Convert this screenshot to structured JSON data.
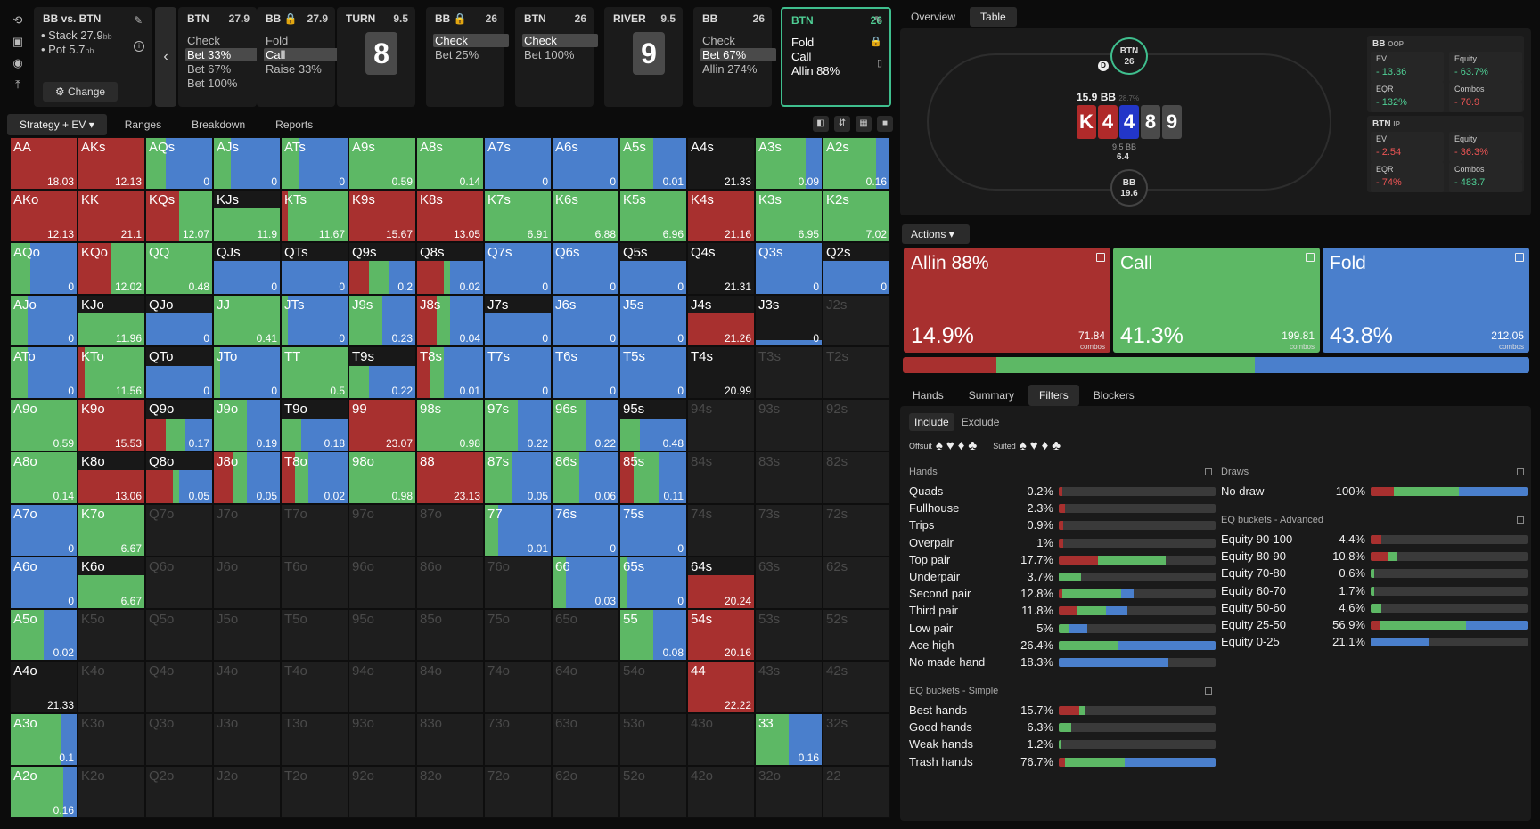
{
  "sidebar_icons": [
    "reset-icon",
    "save-icon",
    "gamepad-icon",
    "export-icon"
  ],
  "info": {
    "title": "BB vs. BTN",
    "stack_label": "Stack 27.9",
    "stack_unit": "bb",
    "pot_label": "Pot 5.7",
    "pot_unit": "bb",
    "change_label": "Change"
  },
  "nodes": [
    {
      "player": "BTN",
      "value": "27.9",
      "options": [
        "Check",
        "Bet 33%",
        "Bet 67%",
        "Bet 100%"
      ],
      "selected": 1
    },
    {
      "player": "BB",
      "value": "27.9",
      "lock": true,
      "options": [
        "Fold",
        "Call",
        "Raise 33%"
      ],
      "selected": 1
    },
    {
      "player": "TURN",
      "value": "9.5",
      "card": "8"
    },
    {
      "player": "BB",
      "value": "26",
      "lock": true,
      "options": [
        "Check",
        "Bet 25%"
      ],
      "selected": 0
    },
    {
      "player": "BTN",
      "value": "26",
      "options": [
        "Check",
        "Bet 100%"
      ],
      "selected": 0
    },
    {
      "player": "RIVER",
      "value": "9.5",
      "card": "9"
    },
    {
      "player": "BB",
      "value": "26",
      "options": [
        "Check",
        "Bet 67%",
        "Allin 274%"
      ],
      "selected": 1
    },
    {
      "player": "BTN",
      "value": "26",
      "options": [
        "Fold",
        "Call",
        "Allin 88%"
      ],
      "selected": -1,
      "active": true
    }
  ],
  "left_tabs": [
    "Strategy + EV",
    "Ranges",
    "Breakdown",
    "Reports"
  ],
  "right_tabs": [
    "Overview",
    "Table"
  ],
  "table": {
    "btn_seat": "BTN",
    "btn_stack": "26",
    "bb_seat": "BB",
    "bb_stack": "19.6",
    "dealer": "D",
    "pot": "15.9 BB",
    "pot_sub": "28.7%",
    "board": [
      {
        "r": "K",
        "c": "#b02a2a"
      },
      {
        "r": "4",
        "c": "#b02a2a"
      },
      {
        "r": "4",
        "c": "#2236c8"
      },
      {
        "r": "8",
        "c": "#4a4a4a"
      },
      {
        "r": "9",
        "c": "#4a4a4a"
      }
    ],
    "bet1": "9.5 BB",
    "bet2": "6.4"
  },
  "stats": {
    "bb": {
      "name": "BB",
      "pos": "OOP",
      "ev": "13.36",
      "equity": "63.7%",
      "eqr": "132%",
      "combos": "70.9"
    },
    "btn": {
      "name": "BTN",
      "pos": "IP",
      "ev": "2.54",
      "equity": "36.3%",
      "eqr": "74%",
      "combos": "483.7"
    },
    "labels": {
      "ev": "EV",
      "equity": "Equity",
      "eqr": "EQR",
      "combos": "Combos"
    }
  },
  "actions_label": "Actions",
  "actions": [
    {
      "name": "Allin 88%",
      "pct": "14.9%",
      "combos": "71.84",
      "color": "#a8302f",
      "frac": 0.149
    },
    {
      "name": "Call",
      "pct": "41.3%",
      "combos": "199.81",
      "color": "#5db865",
      "frac": 0.413
    },
    {
      "name": "Fold",
      "pct": "43.8%",
      "combos": "212.05",
      "color": "#4a7fcc",
      "frac": 0.438
    }
  ],
  "combos_word": "combos",
  "sub_tabs": [
    "Hands",
    "Summary",
    "Filters",
    "Blockers"
  ],
  "include_label": "Include",
  "exclude_label": "Exclude",
  "offsuit_label": "Offsuit",
  "suited_label": "Suited",
  "suits": [
    "♠",
    "♥",
    "♦",
    "♣"
  ],
  "hands_title": "Hands",
  "hands": [
    {
      "n": "Quads",
      "p": "0.2%",
      "b": [
        0.02,
        0,
        0
      ]
    },
    {
      "n": "Fullhouse",
      "p": "2.3%",
      "b": [
        0.04,
        0,
        0
      ]
    },
    {
      "n": "Trips",
      "p": "0.9%",
      "b": [
        0.03,
        0,
        0
      ]
    },
    {
      "n": "Overpair",
      "p": "1%",
      "b": [
        0.03,
        0,
        0
      ]
    },
    {
      "n": "Top pair",
      "p": "17.7%",
      "b": [
        0.25,
        0.43,
        0
      ]
    },
    {
      "n": "Underpair",
      "p": "3.7%",
      "b": [
        0,
        0.14,
        0
      ]
    },
    {
      "n": "Second pair",
      "p": "12.8%",
      "b": [
        0.02,
        0.38,
        0.08
      ]
    },
    {
      "n": "Third pair",
      "p": "11.8%",
      "b": [
        0.12,
        0.18,
        0.14
      ]
    },
    {
      "n": "Low pair",
      "p": "5%",
      "b": [
        0,
        0.06,
        0.12
      ]
    },
    {
      "n": "Ace high",
      "p": "26.4%",
      "b": [
        0,
        0.38,
        0.62
      ]
    },
    {
      "n": "No made hand",
      "p": "18.3%",
      "b": [
        0,
        0,
        0.7
      ]
    }
  ],
  "eqs_title": "EQ buckets - Simple",
  "eqs": [
    {
      "n": "Best hands",
      "p": "15.7%",
      "b": [
        0.13,
        0.04,
        0
      ]
    },
    {
      "n": "Good hands",
      "p": "6.3%",
      "b": [
        0,
        0.08,
        0
      ]
    },
    {
      "n": "Weak hands",
      "p": "1.2%",
      "b": [
        0,
        0.01,
        0
      ]
    },
    {
      "n": "Trash hands",
      "p": "76.7%",
      "b": [
        0.04,
        0.38,
        0.58
      ]
    }
  ],
  "draws_title": "Draws",
  "draws": [
    {
      "n": "No draw",
      "p": "100%",
      "b": [
        0.15,
        0.41,
        0.44
      ]
    }
  ],
  "eqa_title": "EQ buckets - Advanced",
  "eqa": [
    {
      "n": "Equity 90-100",
      "p": "4.4%",
      "b": [
        0.07,
        0,
        0
      ]
    },
    {
      "n": "Equity 80-90",
      "p": "10.8%",
      "b": [
        0.11,
        0.06,
        0
      ]
    },
    {
      "n": "Equity 70-80",
      "p": "0.6%",
      "b": [
        0,
        0.02,
        0
      ]
    },
    {
      "n": "Equity 60-70",
      "p": "1.7%",
      "b": [
        0,
        0.02,
        0
      ]
    },
    {
      "n": "Equity 50-60",
      "p": "4.6%",
      "b": [
        0,
        0.07,
        0
      ]
    },
    {
      "n": "Equity 25-50",
      "p": "56.9%",
      "b": [
        0.06,
        0.55,
        0.39
      ]
    },
    {
      "n": "Equity 0-25",
      "p": "21.1%",
      "b": [
        0,
        0,
        0.37
      ]
    }
  ],
  "colors": {
    "raise": "#a8302f",
    "call": "#5db865",
    "fold": "#4a7fcc",
    "check": "#181818"
  },
  "grid_ranks": [
    "A",
    "K",
    "Q",
    "J",
    "T",
    "9",
    "8",
    "7",
    "6",
    "5",
    "4",
    "3",
    "2"
  ],
  "grid": {
    "AA": [
      1,
      0,
      0,
      "18.03"
    ],
    "AKs": [
      1,
      0,
      0,
      "12.13"
    ],
    "AQs": [
      0,
      0.3,
      0.7,
      "0"
    ],
    "AJs": [
      0,
      0.25,
      0.75,
      "0"
    ],
    "ATs": [
      0,
      0.25,
      0.75,
      "0"
    ],
    "A9s": [
      0,
      1,
      0,
      "0.59"
    ],
    "A8s": [
      0,
      1,
      0,
      "0.14"
    ],
    "A7s": [
      0,
      0,
      1,
      "0"
    ],
    "A6s": [
      0,
      0,
      1,
      "0"
    ],
    "A5s": [
      0,
      0.5,
      0.5,
      "0.01"
    ],
    "A4s": [
      0,
      0,
      0,
      "21.33"
    ],
    "A3s": [
      0,
      0.75,
      0.25,
      "0.09"
    ],
    "A2s": [
      0,
      0.8,
      0.2,
      "0.16"
    ],
    "AKo": [
      1,
      0,
      0,
      "12.13"
    ],
    "KK": [
      1,
      0,
      0,
      "21.1"
    ],
    "KQs": [
      0.5,
      0.5,
      0,
      "12.07"
    ],
    "KJs": [
      0,
      1,
      0,
      "11.9",
      "cb"
    ],
    "KTs": [
      0.1,
      0.9,
      0,
      "11.67"
    ],
    "K9s": [
      1,
      0,
      0,
      "15.67"
    ],
    "K8s": [
      1,
      0,
      0,
      "13.05"
    ],
    "K7s": [
      0,
      1,
      0,
      "6.91"
    ],
    "K6s": [
      0,
      1,
      0,
      "6.88"
    ],
    "K5s": [
      0,
      1,
      0,
      "6.96"
    ],
    "K4s": [
      1,
      0,
      0,
      "21.16"
    ],
    "K3s": [
      0,
      1,
      0,
      "6.95"
    ],
    "K2s": [
      0,
      1,
      0,
      "7.02"
    ],
    "AQo": [
      0,
      0.3,
      0.7,
      "0"
    ],
    "KQo": [
      0.5,
      0.5,
      0,
      "12.02"
    ],
    "QQ": [
      0,
      1,
      0,
      "0.48"
    ],
    "QJs": [
      0,
      0,
      1,
      "0",
      "cb"
    ],
    "QTs": [
      0,
      0,
      1,
      "0",
      "cb"
    ],
    "Q9s": [
      0.3,
      0.3,
      0.4,
      "0.2",
      "cb"
    ],
    "Q8s": [
      0.4,
      0.1,
      0.5,
      "0.02",
      "cb"
    ],
    "Q7s": [
      0,
      0,
      1,
      "0"
    ],
    "Q6s": [
      0,
      0,
      1,
      "0"
    ],
    "Q5s": [
      0,
      0,
      1,
      "0",
      "cb"
    ],
    "Q4s": [
      0,
      0,
      0,
      "21.31"
    ],
    "Q3s": [
      0,
      0,
      1,
      "0"
    ],
    "Q2s": [
      0,
      0,
      1,
      "0",
      "cb"
    ],
    "AJo": [
      0,
      0.25,
      0.75,
      "0"
    ],
    "KJo": [
      0,
      1,
      0,
      "11.96",
      "cb"
    ],
    "QJo": [
      0,
      0,
      1,
      "0",
      "cb"
    ],
    "JJ": [
      0,
      1,
      0,
      "0.41"
    ],
    "JTs": [
      0,
      0.1,
      0.9,
      "0"
    ],
    "J9s": [
      0,
      0.5,
      0.5,
      "0.23"
    ],
    "J8s": [
      0.3,
      0.2,
      0.5,
      "0.04"
    ],
    "J7s": [
      0,
      0,
      1,
      "0",
      "cb"
    ],
    "J6s": [
      0,
      0,
      1,
      "0"
    ],
    "J5s": [
      0,
      0,
      1,
      "0"
    ],
    "J4s": [
      1,
      0,
      0,
      "21.26",
      "cb"
    ],
    "J3s": [
      0,
      0,
      1,
      "0",
      "cb2"
    ],
    "ATo": [
      0,
      0.25,
      0.75,
      "0"
    ],
    "KTo": [
      0.1,
      0.9,
      0,
      "11.56"
    ],
    "QTo": [
      0,
      0,
      1,
      "0",
      "cb"
    ],
    "JTo": [
      0,
      0.1,
      0.9,
      "0"
    ],
    "TT": [
      0,
      1,
      0,
      "0.5"
    ],
    "T9s": [
      0,
      0.3,
      0.7,
      "0.22",
      "cb"
    ],
    "T8s": [
      0.2,
      0.2,
      0.6,
      "0.01"
    ],
    "T7s": [
      0,
      0,
      1,
      "0"
    ],
    "T6s": [
      0,
      0,
      1,
      "0"
    ],
    "T5s": [
      0,
      0,
      1,
      "0"
    ],
    "T4s": [
      0,
      0,
      0,
      "20.99"
    ],
    "A9o": [
      0,
      1,
      0,
      "0.59"
    ],
    "K9o": [
      1,
      0,
      0,
      "15.53"
    ],
    "Q9o": [
      0.3,
      0.3,
      0.4,
      "0.17",
      "cb"
    ],
    "J9o": [
      0,
      0.5,
      0.5,
      "0.19"
    ],
    "T9o": [
      0,
      0.3,
      0.7,
      "0.18",
      "cb"
    ],
    "99": [
      1,
      0,
      0,
      "23.07"
    ],
    "98s": [
      0,
      1,
      0,
      "0.98"
    ],
    "97s": [
      0,
      0.5,
      0.5,
      "0.22"
    ],
    "96s": [
      0,
      0.5,
      0.5,
      "0.22"
    ],
    "95s": [
      0,
      0.3,
      0.7,
      "0.48",
      "cb"
    ],
    "A8o": [
      0,
      1,
      0,
      "0.14"
    ],
    "K8o": [
      1,
      0,
      0,
      "13.06",
      "cb"
    ],
    "Q8o": [
      0.4,
      0.1,
      0.5,
      "0.05",
      "cb"
    ],
    "J8o": [
      0.3,
      0.2,
      0.5,
      "0.05"
    ],
    "T8o": [
      0.2,
      0.2,
      0.6,
      "0.02"
    ],
    "98o": [
      0,
      1,
      0,
      "0.98"
    ],
    "88": [
      1,
      0,
      0,
      "23.13"
    ],
    "87s": [
      0,
      0.4,
      0.6,
      "0.05"
    ],
    "86s": [
      0,
      0.4,
      0.6,
      "0.06"
    ],
    "85s": [
      0.2,
      0.4,
      0.4,
      "0.11"
    ],
    "A7o": [
      0,
      0,
      1,
      "0"
    ],
    "K7o": [
      0,
      1,
      0,
      "6.67"
    ],
    "77": [
      0,
      0.2,
      0.8,
      "0.01"
    ],
    "76s": [
      0,
      0,
      1,
      "0"
    ],
    "75s": [
      0,
      0,
      1,
      "0"
    ],
    "A6o": [
      0,
      0,
      1,
      "0"
    ],
    "K6o": [
      0,
      1,
      0,
      "6.67",
      "cb"
    ],
    "66": [
      0,
      0.2,
      0.8,
      "0.03"
    ],
    "65s": [
      0,
      0.1,
      0.9,
      "0"
    ],
    "64s": [
      1,
      0,
      0,
      "20.24",
      "cb"
    ],
    "A5o": [
      0,
      0.5,
      0.5,
      "0.02"
    ],
    "55": [
      0,
      0.5,
      0.5,
      "0.08"
    ],
    "54s": [
      1,
      0,
      0,
      "20.16"
    ],
    "A4o": [
      0,
      0,
      0,
      "21.33"
    ],
    "44": [
      1,
      0,
      0,
      "22.22"
    ],
    "A3o": [
      0,
      0.75,
      0.25,
      "0.1"
    ],
    "33": [
      0,
      0.5,
      0.5,
      "0.16"
    ],
    "A2o": [
      0,
      0.8,
      0.2,
      "0.16"
    ]
  }
}
